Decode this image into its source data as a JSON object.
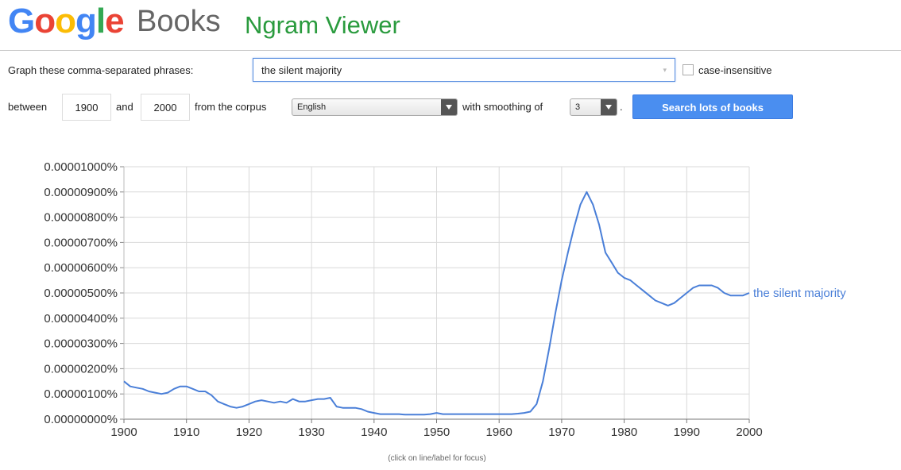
{
  "header": {
    "logo_google_letters": [
      {
        "ch": "G",
        "color": "#4285f4"
      },
      {
        "ch": "o",
        "color": "#ea4335"
      },
      {
        "ch": "o",
        "color": "#fbbc05"
      },
      {
        "ch": "g",
        "color": "#4285f4"
      },
      {
        "ch": "l",
        "color": "#34a853"
      },
      {
        "ch": "e",
        "color": "#ea4335"
      }
    ],
    "logo_books": "Books",
    "title": "Ngram Viewer"
  },
  "form": {
    "phrases_label": "Graph these comma-separated phrases:",
    "phrases_value": "the silent majority",
    "case_insensitive_label": "case-insensitive",
    "between_label": "between",
    "start_year": "1900",
    "and_label": "and",
    "end_year": "2000",
    "corpus_label": "from the corpus",
    "corpus_value": "English",
    "smoothing_label": "with smoothing of",
    "smoothing_value": "3",
    "period": ".",
    "search_button": "Search lots of books"
  },
  "footer_note": "(click on line/label for focus)",
  "chart_data": {
    "type": "line",
    "x_range": [
      1900,
      2000
    ],
    "y_range": [
      0,
      1e-05
    ],
    "y_unit": "%",
    "x_ticks": [
      1900,
      1910,
      1920,
      1930,
      1940,
      1950,
      1960,
      1970,
      1980,
      1990,
      2000
    ],
    "y_tick_labels": [
      "0.00000000%",
      "0.00000100%",
      "0.00000200%",
      "0.00000300%",
      "0.00000400%",
      "0.00000500%",
      "0.00000600%",
      "0.00000700%",
      "0.00000800%",
      "0.00000900%",
      "0.00001000%"
    ],
    "grid": true,
    "series": [
      {
        "name": "the silent majority",
        "color": "#4a7fd8",
        "x": [
          1900,
          1901,
          1902,
          1903,
          1904,
          1905,
          1906,
          1907,
          1908,
          1909,
          1910,
          1911,
          1912,
          1913,
          1914,
          1915,
          1916,
          1917,
          1918,
          1919,
          1920,
          1921,
          1922,
          1923,
          1924,
          1925,
          1926,
          1927,
          1928,
          1929,
          1930,
          1931,
          1932,
          1933,
          1934,
          1935,
          1936,
          1937,
          1938,
          1939,
          1940,
          1941,
          1942,
          1943,
          1944,
          1945,
          1946,
          1947,
          1948,
          1949,
          1950,
          1951,
          1952,
          1953,
          1954,
          1955,
          1956,
          1957,
          1958,
          1959,
          1960,
          1961,
          1962,
          1963,
          1964,
          1965,
          1966,
          1967,
          1968,
          1969,
          1970,
          1971,
          1972,
          1973,
          1974,
          1975,
          1976,
          1977,
          1978,
          1979,
          1980,
          1981,
          1982,
          1983,
          1984,
          1985,
          1986,
          1987,
          1988,
          1989,
          1990,
          1991,
          1992,
          1993,
          1994,
          1995,
          1996,
          1997,
          1998,
          1999,
          2000
        ],
        "y": [
          1.5e-06,
          1.3e-06,
          1.25e-06,
          1.2e-06,
          1.1e-06,
          1.05e-06,
          1e-06,
          1.05e-06,
          1.2e-06,
          1.3e-06,
          1.3e-06,
          1.2e-06,
          1.1e-06,
          1.1e-06,
          9.5e-07,
          7e-07,
          6e-07,
          5e-07,
          4.5e-07,
          5e-07,
          6e-07,
          7e-07,
          7.5e-07,
          7e-07,
          6.5e-07,
          7e-07,
          6.5e-07,
          8e-07,
          7e-07,
          7e-07,
          7.5e-07,
          8e-07,
          8e-07,
          8.5e-07,
          5e-07,
          4.5e-07,
          4.5e-07,
          4.5e-07,
          4e-07,
          3e-07,
          2.5e-07,
          2e-07,
          2e-07,
          2e-07,
          2e-07,
          1.8e-07,
          1.8e-07,
          1.8e-07,
          1.8e-07,
          2e-07,
          2.5e-07,
          2e-07,
          2e-07,
          2e-07,
          2e-07,
          2e-07,
          2e-07,
          2e-07,
          2e-07,
          2e-07,
          2e-07,
          2e-07,
          2e-07,
          2.2e-07,
          2.5e-07,
          3e-07,
          6e-07,
          1.5e-06,
          2.8e-06,
          4.2e-06,
          5.5e-06,
          6.6e-06,
          7.6e-06,
          8.5e-06,
          9e-06,
          8.5e-06,
          7.7e-06,
          6.6e-06,
          6.2e-06,
          5.8e-06,
          5.6e-06,
          5.5e-06,
          5.3e-06,
          5.1e-06,
          4.9e-06,
          4.7e-06,
          4.6e-06,
          4.5e-06,
          4.6e-06,
          4.8e-06,
          5e-06,
          5.2e-06,
          5.3e-06,
          5.3e-06,
          5.3e-06,
          5.2e-06,
          5e-06,
          4.9e-06,
          4.9e-06,
          4.9e-06,
          5e-06
        ]
      }
    ]
  }
}
